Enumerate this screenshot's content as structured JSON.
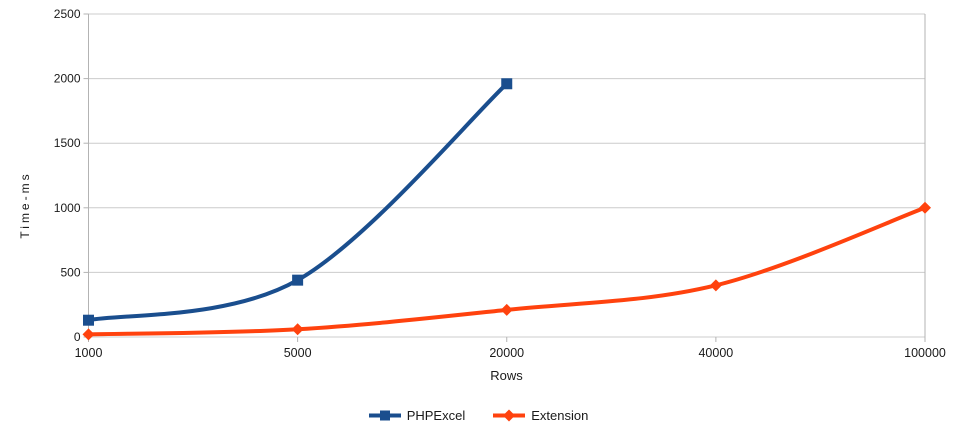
{
  "chart_data": {
    "type": "line",
    "title": "",
    "categories": [
      "1000",
      "5000",
      "20000",
      "40000",
      "100000"
    ],
    "series": [
      {
        "name": "PHPExcel",
        "color": "#1a4e8e",
        "marker": "square",
        "values": [
          130,
          440,
          1960,
          null,
          null
        ]
      },
      {
        "name": "Extension",
        "color": "#ff420e",
        "marker": "diamond",
        "values": [
          20,
          60,
          210,
          400,
          1000
        ]
      }
    ],
    "xlabel": "Rows",
    "ylabel": "Time-ms",
    "ylim": [
      0,
      2500
    ],
    "yticks": [
      0,
      500,
      1000,
      1500,
      2000,
      2500
    ],
    "grid": "horizontal",
    "legend_position": "bottom",
    "line_width": 4,
    "colors": {
      "grid": "#cccccc",
      "axis": "#b3b3b3",
      "text": "#1a1a1a",
      "background": "#ffffff"
    }
  }
}
